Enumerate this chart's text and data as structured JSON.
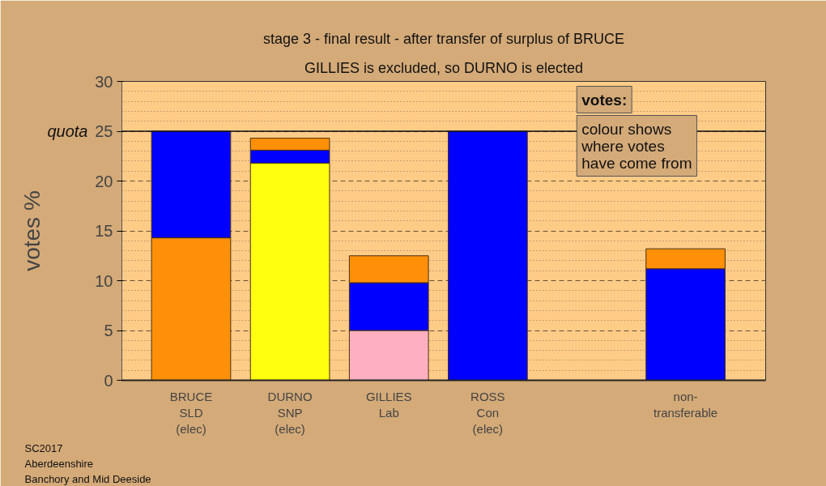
{
  "chart_data": {
    "type": "bar",
    "stacked": true,
    "title": "stage 3 - final result - after transfer of surplus of BRUCE",
    "subtitle": "GILLIES is excluded, so DURNO is elected",
    "ylabel": "votes %",
    "categories": [
      "BRUCE\nSLD\n(elec)",
      "DURNO\nSNP\n(elec)",
      "GILLIES\nLab",
      "ROSS\nCon\n(elec)",
      null,
      "non-\ntransferable"
    ],
    "series": [
      {
        "values": [
          14.3,
          21.8,
          5.0,
          25,
          null,
          11.2
        ],
        "colors": [
          "#ff9008",
          "#ffff10",
          "#ffb0c0",
          "#0000ff",
          null,
          "#0000ff"
        ]
      },
      {
        "color": "#0000ff",
        "values": [
          10.7,
          1.3,
          4.8,
          null,
          null,
          null
        ]
      },
      {
        "color": "#ff9008",
        "values": [
          null,
          1.2,
          2.7,
          null,
          null,
          2.0
        ]
      }
    ],
    "ylim": [
      0,
      30
    ],
    "yticks": [
      0,
      {
        "value": 1,
        "label": null
      },
      {
        "value": 2,
        "label": null
      },
      {
        "value": 3,
        "label": null
      },
      {
        "value": 4,
        "label": null
      },
      5,
      {
        "value": 6,
        "label": null
      },
      {
        "value": 7,
        "label": null
      },
      {
        "value": 8,
        "label": null
      },
      {
        "value": 9,
        "label": null
      },
      10,
      {
        "value": 11,
        "label": null
      },
      {
        "value": 12,
        "label": null
      },
      {
        "value": 13,
        "label": null
      },
      {
        "value": 14,
        "label": null
      },
      15,
      {
        "value": 16,
        "label": null
      },
      {
        "value": 17,
        "label": null
      },
      {
        "value": 18,
        "label": null
      },
      {
        "value": 19,
        "label": null
      },
      20,
      {
        "value": 21,
        "label": null
      },
      {
        "value": 22,
        "label": null
      },
      {
        "value": 23,
        "label": null
      },
      {
        "value": 24,
        "label": null
      },
      25,
      {
        "value": 26,
        "label": null
      },
      {
        "value": 27,
        "label": null
      },
      {
        "value": 28,
        "label": null
      },
      {
        "value": 29,
        "label": null
      },
      30
    ],
    "grid": "y",
    "ref_lines": [
      {
        "axis": "y",
        "value": 25,
        "label": "quota"
      }
    ],
    "annotations": [
      "votes:",
      "colour shows\nwhere votes\nhave come from",
      "SC2017\nAberdeenshire\nBanchory and Mid Deeside"
    ]
  }
}
